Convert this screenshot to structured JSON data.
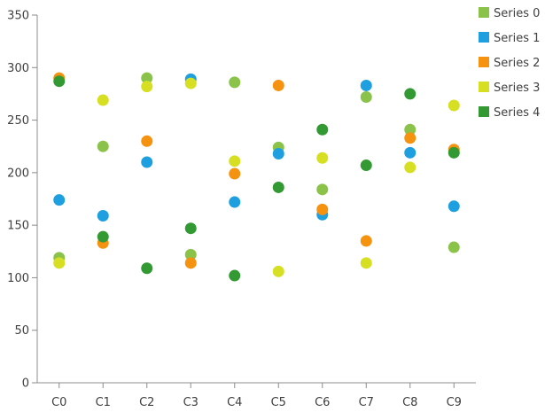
{
  "chart_data": {
    "type": "scatter",
    "title": "",
    "xlabel": "",
    "ylabel": "",
    "categories": [
      "C0",
      "C1",
      "C2",
      "C3",
      "C4",
      "C5",
      "C6",
      "C7",
      "C8",
      "C9"
    ],
    "ylim": [
      0,
      350
    ],
    "yticks": [
      0,
      50,
      100,
      150,
      200,
      250,
      300,
      350
    ],
    "grid": false,
    "legend_position": "top-right",
    "series": [
      {
        "name": "Series 0",
        "color": "#8BC34A",
        "values": [
          119,
          225,
          290,
          122,
          286,
          224,
          184,
          272,
          241,
          129
        ]
      },
      {
        "name": "Series 1",
        "color": "#1E9FE0",
        "values": [
          174,
          159,
          210,
          289,
          172,
          218,
          160,
          283,
          219,
          168
        ]
      },
      {
        "name": "Series 2",
        "color": "#F5920F",
        "values": [
          290,
          133,
          230,
          114,
          199,
          283,
          165,
          135,
          233,
          222
        ]
      },
      {
        "name": "Series 3",
        "color": "#D7DF23",
        "values": [
          114,
          269,
          282,
          285,
          211,
          106,
          214,
          114,
          205,
          264
        ]
      },
      {
        "name": "Series 4",
        "color": "#339933",
        "values": [
          287,
          139,
          109,
          147,
          102,
          186,
          241,
          207,
          275,
          219
        ]
      }
    ]
  }
}
